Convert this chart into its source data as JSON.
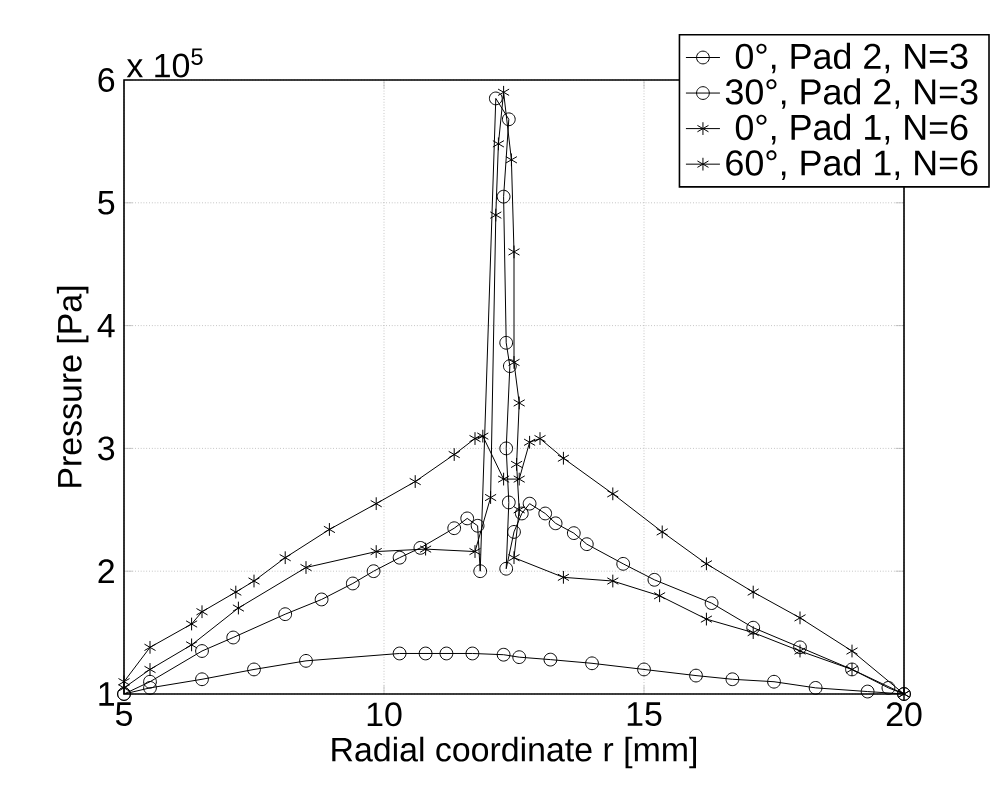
{
  "chart_data": {
    "type": "line",
    "xlabel": "Radial coordinate r [mm]",
    "ylabel": "Pressure [Pa]",
    "annotations": [
      "x 10$^{5}$"
    ],
    "xlim": [
      5,
      20
    ],
    "ylim": [
      1,
      6
    ],
    "xticks": [
      5,
      10,
      15,
      20
    ],
    "yticks": [
      1,
      2,
      3,
      4,
      5,
      6
    ],
    "grid": true,
    "legend": "top right",
    "series": [
      {
        "name": "0°, Pad 2, N=3",
        "color": "#000000",
        "marker": "circle",
        "x": [
          5,
          5.5,
          6.5,
          7.5,
          8.5,
          10.3,
          10.8,
          11.2,
          11.7,
          12.3,
          12.6,
          13.2,
          14,
          15,
          16,
          16.7,
          17.5,
          18.3,
          19.3,
          20
        ],
        "values": [
          1.0,
          1.05,
          1.12,
          1.2,
          1.27,
          1.33,
          1.33,
          1.33,
          1.33,
          1.32,
          1.3,
          1.28,
          1.25,
          1.2,
          1.15,
          1.12,
          1.1,
          1.05,
          1.02,
          1.0
        ]
      },
      {
        "name": "30°, Pad 2, N=3",
        "color": "#000000",
        "marker": "circle",
        "x": [
          5,
          5.5,
          6.5,
          7.1,
          8.1,
          8.8,
          9.4,
          9.8,
          10.3,
          10.7,
          11.35,
          11.6,
          11.8,
          11.85,
          12.15,
          12.4,
          12.3,
          12.35,
          12.42,
          12.35,
          12.4,
          12.35,
          12.5,
          12.65,
          12.8,
          13.1,
          13.3,
          13.65,
          13.9,
          14.6,
          15.2,
          16.3,
          17.1,
          18,
          19,
          19.7,
          20
        ],
        "values": [
          1.0,
          1.1,
          1.35,
          1.46,
          1.65,
          1.77,
          1.9,
          2.0,
          2.11,
          2.19,
          2.35,
          2.43,
          2.37,
          2.0,
          5.85,
          5.68,
          5.05,
          3.86,
          3.67,
          3.0,
          2.56,
          2.02,
          2.32,
          2.47,
          2.55,
          2.47,
          2.39,
          2.31,
          2.22,
          2.06,
          1.93,
          1.74,
          1.54,
          1.38,
          1.2,
          1.05,
          1.0
        ]
      },
      {
        "name": "0°, Pad 1, N=6",
        "color": "#000000",
        "marker": "cross",
        "x": [
          5,
          5.5,
          6.3,
          7.2,
          8.5,
          9.85,
          10.8,
          11.75,
          12.05,
          12.15,
          12.2,
          12.3,
          12.45,
          12.5,
          12.5,
          12.6,
          12.55,
          12.6,
          12.5,
          13.45,
          14.4,
          15.3,
          16.2,
          17.1,
          18,
          19,
          20
        ],
        "values": [
          1.05,
          1.2,
          1.4,
          1.7,
          2.03,
          2.16,
          2.18,
          2.16,
          2.6,
          4.9,
          5.48,
          5.9,
          5.35,
          4.6,
          3.7,
          3.37,
          2.87,
          2.5,
          2.11,
          1.95,
          1.92,
          1.8,
          1.61,
          1.5,
          1.35,
          1.2,
          1.0
        ]
      },
      {
        "name": "60°, Pad 1, N=6",
        "color": "#000000",
        "marker": "cross",
        "x": [
          5,
          5.5,
          6.3,
          6.5,
          7.15,
          7.5,
          8.1,
          8.95,
          9.85,
          10.6,
          11.35,
          11.75,
          11.9,
          12.3,
          12.6,
          12.8,
          13.0,
          13.45,
          14.4,
          15.35,
          16.2,
          17.1,
          18,
          19,
          20
        ],
        "values": [
          1.1,
          1.38,
          1.57,
          1.67,
          1.83,
          1.92,
          2.11,
          2.34,
          2.55,
          2.73,
          2.95,
          3.08,
          3.1,
          2.75,
          2.75,
          3.05,
          3.08,
          2.92,
          2.63,
          2.32,
          2.06,
          1.83,
          1.62,
          1.35,
          1.0
        ]
      }
    ]
  }
}
